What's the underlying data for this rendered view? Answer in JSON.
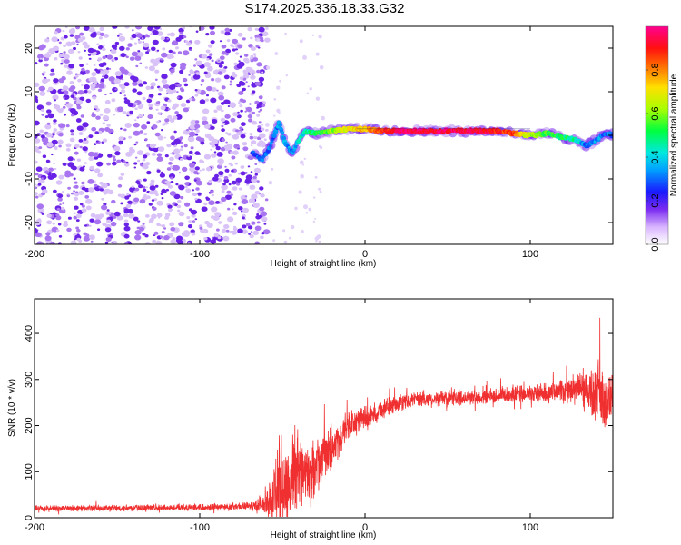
{
  "title": "S174.2025.336.18.33.G32",
  "colors": {
    "spectrum_low": "#c9a8f5",
    "spectrum_mid": "#6f2ce0",
    "snr_line": "#f03030",
    "colorbar": [
      "#ffffff",
      "#d8b4ff",
      "#7a2cf0",
      "#1a1aff",
      "#00d4ff",
      "#00ff60",
      "#a8ff00",
      "#ffe000",
      "#ff6a00",
      "#ff1010",
      "#ff0090"
    ]
  },
  "chart_data": [
    {
      "type": "heatmap",
      "name": "spectrogram",
      "xlabel": "Height of straight line (km)",
      "ylabel": "Frequency (Hz)",
      "xlim": [
        -200,
        150
      ],
      "ylim": [
        -25,
        25
      ],
      "xticks": [
        -200,
        -100,
        0,
        100
      ],
      "xtick_labels": [
        "-200",
        "-100",
        "0",
        "100"
      ],
      "yticks": [
        -20,
        -10,
        0,
        10,
        20
      ],
      "ytick_labels": [
        "-20",
        "-10",
        "0",
        "10",
        "20"
      ],
      "noise_region_x": [
        -200,
        -65
      ],
      "ridge": {
        "x": [
          -68,
          -62,
          -58,
          -55,
          -52,
          -48,
          -44,
          -40,
          -36,
          -30,
          -20,
          -10,
          0,
          10,
          20,
          40,
          60,
          80,
          90,
          100,
          110,
          120,
          128,
          134,
          140,
          146,
          150
        ],
        "frequency": [
          -4,
          -5.5,
          -3,
          0,
          3,
          -2,
          -4,
          -1,
          1,
          0.5,
          1,
          1.5,
          1.5,
          1,
          1,
          1,
          1,
          1,
          0.5,
          0,
          0.5,
          -0.5,
          -1,
          -2.5,
          -1,
          0.5,
          0
        ],
        "amplitude": [
          0.25,
          0.3,
          0.3,
          0.3,
          0.35,
          0.35,
          0.3,
          0.4,
          0.45,
          0.5,
          0.6,
          0.7,
          0.75,
          0.85,
          0.95,
          0.95,
          0.95,
          0.9,
          0.85,
          0.6,
          0.55,
          0.5,
          0.45,
          0.3,
          0.35,
          0.3,
          0.3
        ]
      },
      "colorbar": {
        "label": "Normalized spectral amplitude",
        "ticks": [
          "0.0",
          "0.2",
          "0.4",
          "0.6",
          "0.8"
        ],
        "range": [
          0,
          1
        ]
      }
    },
    {
      "type": "line",
      "name": "snr",
      "xlabel": "Height of straight line (km)",
      "ylabel": "SNR (10 * v/v)",
      "xlim": [
        -200,
        150
      ],
      "ylim": [
        0,
        475
      ],
      "xticks": [
        -200,
        -100,
        0,
        100
      ],
      "xtick_labels": [
        "-200",
        "-100",
        "0",
        "100"
      ],
      "yticks": [
        0,
        100,
        200,
        300,
        400
      ],
      "ytick_labels": [
        "0",
        "100",
        "200",
        "300",
        "400"
      ],
      "envelope": {
        "x": [
          -200,
          -120,
          -70,
          -60,
          -50,
          -40,
          -35,
          -30,
          -20,
          -10,
          0,
          10,
          20,
          30,
          50,
          70,
          90,
          110,
          120,
          130,
          140,
          145,
          150
        ],
        "mean": [
          20,
          22,
          25,
          30,
          60,
          110,
          90,
          110,
          150,
          200,
          215,
          235,
          250,
          255,
          260,
          262,
          268,
          270,
          275,
          280,
          270,
          255,
          265
        ],
        "spread": [
          8,
          8,
          10,
          30,
          130,
          90,
          70,
          70,
          60,
          40,
          30,
          25,
          22,
          20,
          20,
          20,
          22,
          25,
          30,
          45,
          90,
          120,
          70
        ]
      }
    }
  ]
}
